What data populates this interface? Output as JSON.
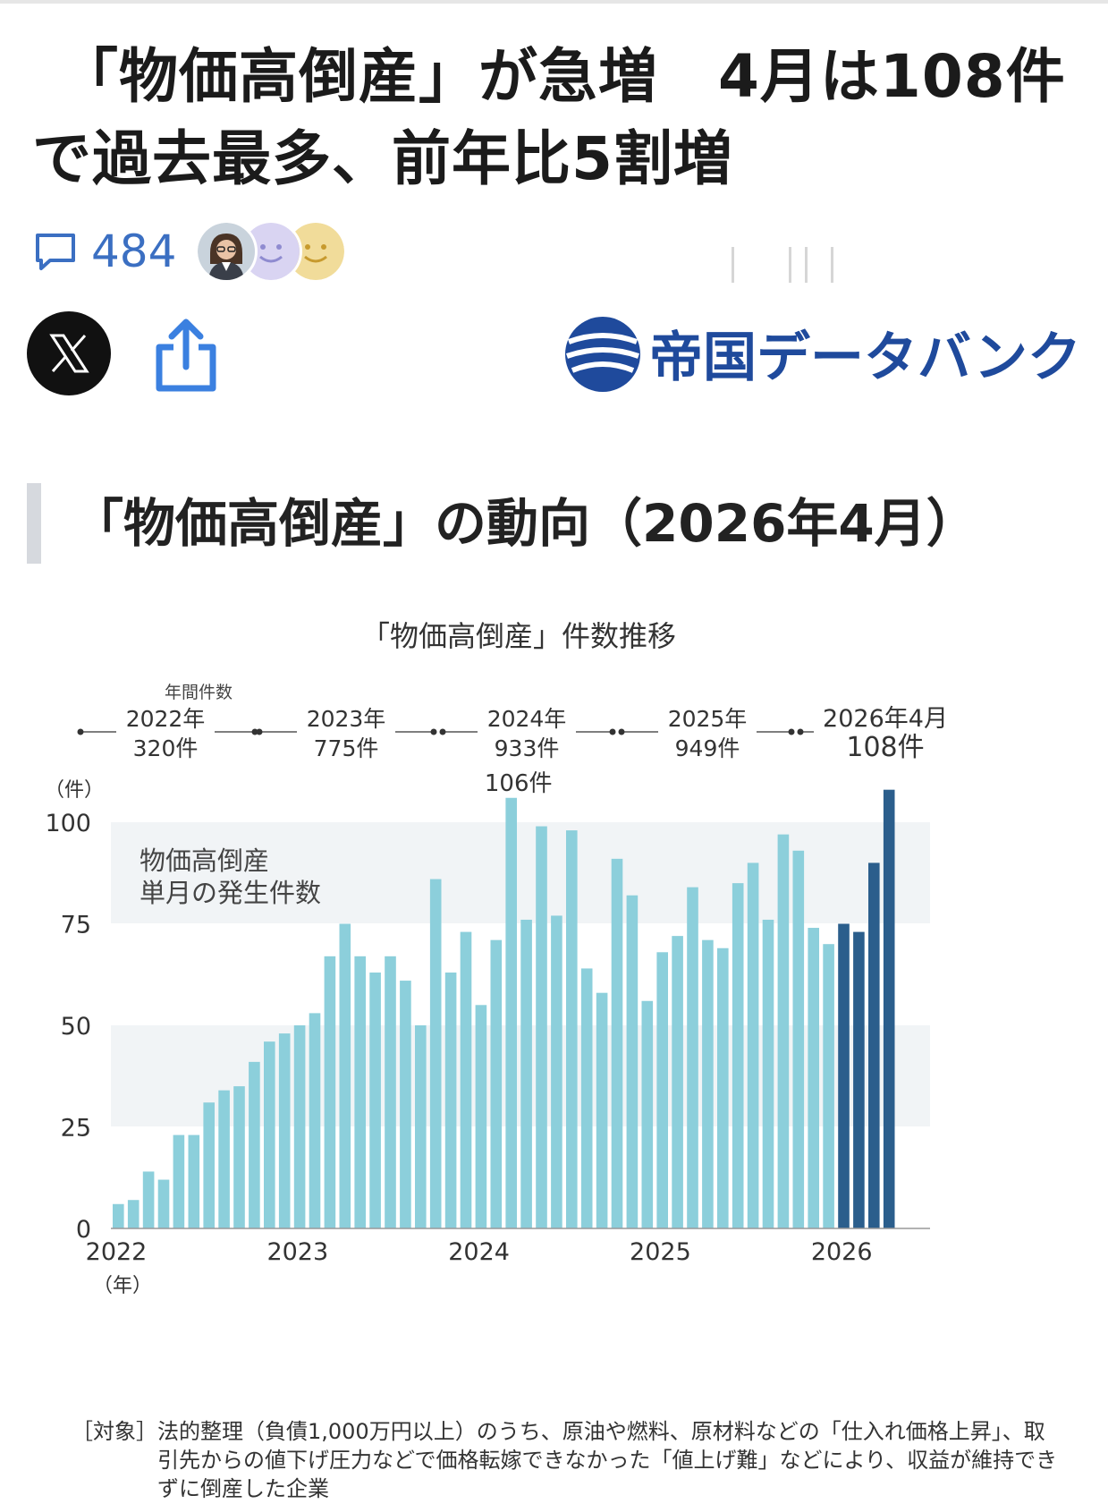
{
  "article": {
    "headline_line1": "「物価高倒産」が急増　4月は108件",
    "headline_line2": "で過去最多、前年比5割増",
    "comment_count": "484",
    "comment_icon": "comment-bubble-icon",
    "share_x_icon": "x-logo-icon",
    "share_icon": "share-icon",
    "source_logo_text": "帝国データバンク"
  },
  "section": {
    "title": "「物価高倒産」の動向（2026年4月）"
  },
  "chart_data": {
    "type": "bar",
    "title": "「物価高倒産」件数推移",
    "annual_label": "年間件数",
    "annual": [
      {
        "year": "2022年",
        "count": "320件"
      },
      {
        "year": "2023年",
        "count": "775件"
      },
      {
        "year": "2024年",
        "count": "933件"
      },
      {
        "year": "2025年",
        "count": "949件"
      },
      {
        "year": "2026年4月",
        "count": "108件"
      }
    ],
    "ylabel": "（件）",
    "xlabel": "（年）",
    "series_label": "物価高倒産\n単月の発生件数",
    "peak_label": "106件",
    "ylim": [
      0,
      110
    ],
    "yticks": [
      0,
      25,
      50,
      75,
      100
    ],
    "xticks": [
      "2022",
      "2023",
      "2024",
      "2025",
      "2026"
    ],
    "bar_color": "#8ccfdb",
    "highlight_color": "#2b5e8c",
    "values": [
      6,
      7,
      14,
      12,
      23,
      23,
      31,
      34,
      35,
      41,
      46,
      48,
      50,
      53,
      67,
      75,
      67,
      63,
      67,
      61,
      50,
      86,
      63,
      73,
      55,
      71,
      106,
      76,
      99,
      77,
      98,
      64,
      58,
      91,
      82,
      56,
      68,
      72,
      84,
      71,
      69,
      85,
      90,
      76,
      97,
      93,
      74,
      70,
      75,
      73,
      90,
      108
    ]
  },
  "footnote": {
    "tag": "［対象］",
    "text": "法的整理（負債1,000万円以上）のうち、原油や燃料、原材料などの「仕入れ価格上昇」、取引先からの値下げ圧力などで価格転嫁できなかった「値上げ難」などにより、収益が維持できずに倒産した企業"
  }
}
